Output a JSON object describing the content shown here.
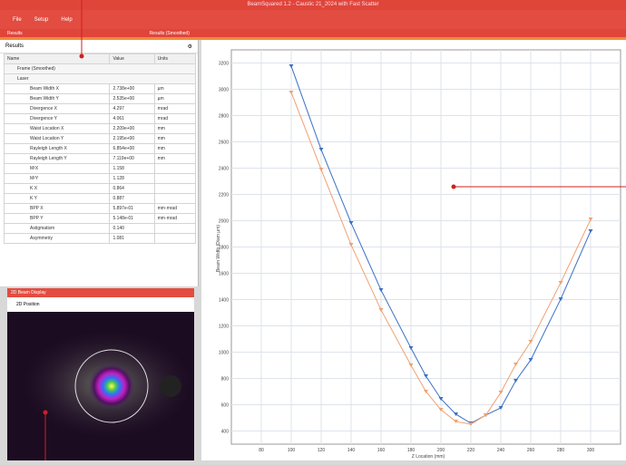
{
  "window": {
    "title": "BeamSquared 1.2 - Caustic 21_2024 with Fast Scatter",
    "menu": [
      "File",
      "Setup",
      "Help"
    ]
  },
  "tabs": [
    "Results",
    "Results (Smoothed)"
  ],
  "results_panel": {
    "toolbar": "Results",
    "columns": [
      "Name",
      "Value",
      "Units"
    ],
    "groups": [
      "Frame (Smoothed)",
      "Laser"
    ],
    "rows": [
      {
        "name": "Beam Width X",
        "value": "2.738e+00",
        "units": "µm"
      },
      {
        "name": "Beam Width Y",
        "value": "2.535e+00",
        "units": "µm"
      },
      {
        "name": "Divergence X",
        "value": "4.297",
        "units": "mrad"
      },
      {
        "name": "Divergence Y",
        "value": "4.061",
        "units": "mrad"
      },
      {
        "name": "Waist Location X",
        "value": "2.209e+00",
        "units": "mm"
      },
      {
        "name": "Waist Location Y",
        "value": "2.195e+00",
        "units": "mm"
      },
      {
        "name": "Rayleigh Length X",
        "value": "6.854e+00",
        "units": "mm"
      },
      {
        "name": "Rayleigh Length Y",
        "value": "7.119e+00",
        "units": "mm"
      },
      {
        "name": "M²X",
        "value": "1.158"
      },
      {
        "name": "M²Y",
        "value": "1.128"
      },
      {
        "name": "K X",
        "value": "0.864"
      },
      {
        "name": "K Y",
        "value": "0.887"
      },
      {
        "name": "BPP X",
        "value": "5.897e-01",
        "units": "mm·mrad"
      },
      {
        "name": "BPP Y",
        "value": "5.148e-01",
        "units": "mm·mrad"
      },
      {
        "name": "Astigmatism",
        "value": "0.140"
      },
      {
        "name": "Asymmetry",
        "value": "1.081"
      }
    ]
  },
  "beam_display": {
    "title": "2D Beam Display",
    "toolbar": "2D Position"
  },
  "chart_data": {
    "type": "line",
    "xlabel": "Z Location (mm)",
    "ylabel": "Beam Width (Diam µm)",
    "x": [
      100,
      120,
      140,
      160,
      180,
      190,
      200,
      210,
      220,
      230,
      240,
      250,
      260,
      280,
      300
    ],
    "series": [
      {
        "name": "Beam Width X",
        "color": "#3a6fc4",
        "values": [
          3176,
          2541,
          1983,
          1472,
          1031,
          817,
          645,
          528,
          459,
          521,
          576,
          783,
          941,
          1403,
          1921
        ]
      },
      {
        "name": "Beam Width Y",
        "color": "#f0a070",
        "values": [
          2976,
          2390,
          1817,
          1321,
          900,
          700,
          562,
          472,
          452,
          521,
          693,
          907,
          1079,
          1528,
          2010
        ]
      }
    ],
    "xlim": [
      60,
      320
    ],
    "xticks": [
      80,
      100,
      120,
      140,
      160,
      180,
      200,
      220,
      240,
      260,
      280,
      300
    ],
    "ylim": [
      300,
      3300
    ],
    "yticks": [
      400,
      600,
      800,
      1000,
      1200,
      1400,
      1600,
      1800,
      2000,
      2200,
      2400,
      2600,
      2800,
      3000,
      3200
    ],
    "grid": true
  }
}
